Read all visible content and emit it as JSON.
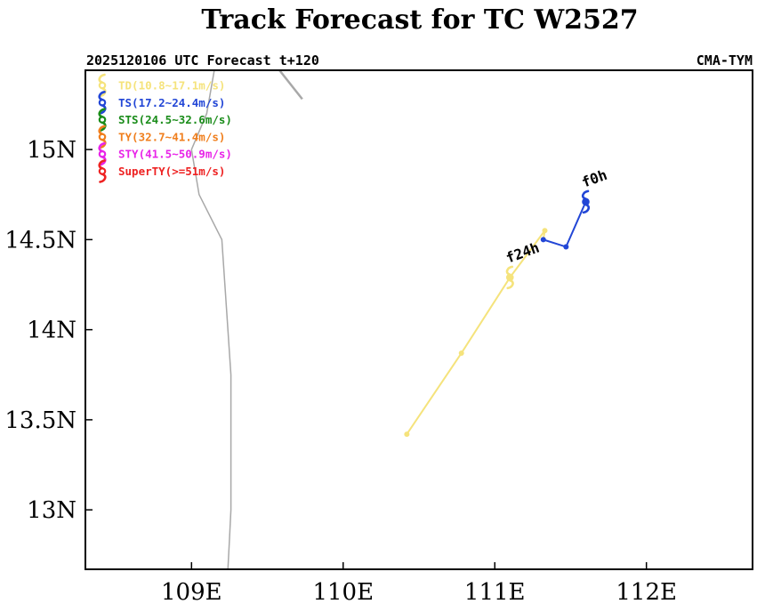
{
  "title": "Track Forecast for TC W2527",
  "subtitle_left": "2025120106 UTC Forecast t+120",
  "subtitle_right": "CMA-TYM",
  "map": {
    "lon_range": [
      108.3,
      112.7
    ],
    "lat_range": [
      12.67,
      15.44
    ],
    "lon_ticks": [
      {
        "value": 109,
        "label": "109E"
      },
      {
        "value": 110,
        "label": "110E"
      },
      {
        "value": 111,
        "label": "111E"
      },
      {
        "value": 112,
        "label": "112E"
      }
    ],
    "lat_ticks": [
      {
        "value": 15,
        "label": "15N"
      },
      {
        "value": 14.5,
        "label": "14.5N"
      },
      {
        "value": 14,
        "label": "14N"
      },
      {
        "value": 13.5,
        "label": "13.5N"
      },
      {
        "value": 13,
        "label": "13N"
      }
    ],
    "coastlines": [
      [
        [
          109.58,
          15.44
        ],
        [
          109.73,
          15.28
        ]
      ],
      [
        [
          109.15,
          15.44
        ],
        [
          109.1,
          15.2
        ],
        [
          109.0,
          15.0
        ],
        [
          109.05,
          14.75
        ],
        [
          109.2,
          14.5
        ],
        [
          109.22,
          14.25
        ],
        [
          109.24,
          14.0
        ],
        [
          109.26,
          13.75
        ],
        [
          109.26,
          13.5
        ],
        [
          109.26,
          13.25
        ],
        [
          109.26,
          13.0
        ],
        [
          109.25,
          12.83
        ],
        [
          109.24,
          12.67
        ]
      ]
    ],
    "coast_color": "#a8a8a8"
  },
  "legend": [
    {
      "label": "TD(10.8~17.1m/s)",
      "color": "#f5e37c"
    },
    {
      "label": "TS(17.2~24.4m/s)",
      "color": "#2246d6"
    },
    {
      "label": "STS(24.5~32.6m/s)",
      "color": "#1a8c1a"
    },
    {
      "label": "TY(32.7~41.4m/s)",
      "color": "#f07f1e"
    },
    {
      "label": "STY(41.5~50.9m/s)",
      "color": "#e824e8"
    },
    {
      "label": "SuperTY(>=51m/s)",
      "color": "#ee2222"
    }
  ],
  "track": {
    "points": [
      {
        "lon": 111.6,
        "lat": 14.71,
        "category": "TS",
        "color": "#2246d6"
      },
      {
        "lon": 111.47,
        "lat": 14.46,
        "category": "TS",
        "color": "#2246d6"
      },
      {
        "lon": 111.32,
        "lat": 14.5,
        "category": "TS",
        "color": "#2246d6"
      },
      {
        "lon": 111.33,
        "lat": 14.55,
        "category": "TD",
        "color": "#f5e37c"
      },
      {
        "lon": 111.1,
        "lat": 14.29,
        "category": "TD",
        "color": "#f5e37c"
      },
      {
        "lon": 110.78,
        "lat": 13.87,
        "category": "TD",
        "color": "#f5e37c"
      },
      {
        "lon": 110.42,
        "lat": 13.42,
        "category": "TD",
        "color": "#f5e37c"
      }
    ],
    "symbols": [
      {
        "lon": 111.6,
        "lat": 14.71,
        "color": "#2246d6"
      },
      {
        "lon": 111.1,
        "lat": 14.29,
        "color": "#f5e37c"
      }
    ],
    "time_labels": [
      {
        "text": "f0h",
        "lon": 111.6,
        "lat": 14.71
      },
      {
        "text": "f24h",
        "lon": 111.1,
        "lat": 14.29
      }
    ]
  }
}
